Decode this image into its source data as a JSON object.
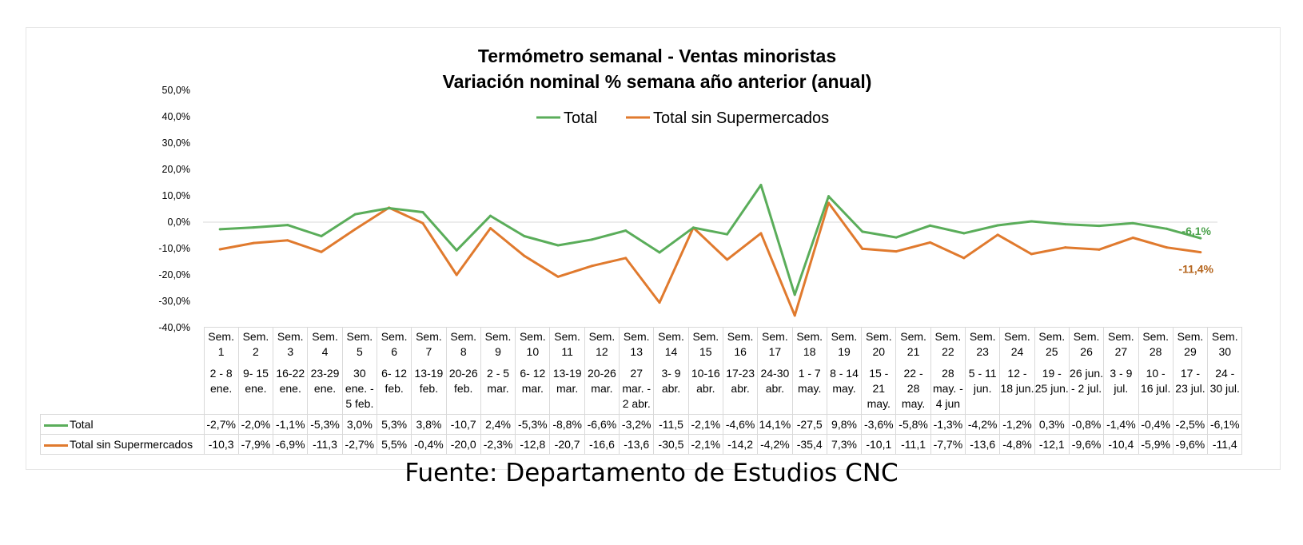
{
  "chart_data": {
    "type": "line",
    "title": "Termómetro semanal - Ventas minoristas",
    "subtitle": "Variación nominal % semana año anterior (anual)",
    "ylim": [
      -40,
      50
    ],
    "yticks": [
      "-40,0%",
      "-30,0%",
      "-20,0%",
      "-10,0%",
      "0,0%",
      "10,0%",
      "20,0%",
      "30,0%",
      "40,0%",
      "50,0%"
    ],
    "legend_position": "top-center",
    "categories": [
      {
        "week": "Sem. 1",
        "dates": "2 - 8 ene."
      },
      {
        "week": "Sem. 2",
        "dates": "9- 15 ene."
      },
      {
        "week": "Sem. 3",
        "dates": "16-22 ene."
      },
      {
        "week": "Sem. 4",
        "dates": "23-29 ene."
      },
      {
        "week": "Sem. 5",
        "dates": "30 ene. - 5 feb."
      },
      {
        "week": "Sem. 6",
        "dates": "6- 12 feb."
      },
      {
        "week": "Sem. 7",
        "dates": "13-19 feb."
      },
      {
        "week": "Sem. 8",
        "dates": "20-26 feb."
      },
      {
        "week": "Sem. 9",
        "dates": "2 - 5 mar."
      },
      {
        "week": "Sem. 10",
        "dates": "6- 12 mar."
      },
      {
        "week": "Sem. 11",
        "dates": "13-19 mar."
      },
      {
        "week": "Sem. 12",
        "dates": "20-26 mar."
      },
      {
        "week": "Sem. 13",
        "dates": "27 mar. - 2 abr."
      },
      {
        "week": "Sem. 14",
        "dates": "3- 9 abr."
      },
      {
        "week": "Sem. 15",
        "dates": "10-16 abr."
      },
      {
        "week": "Sem. 16",
        "dates": "17-23 abr."
      },
      {
        "week": "Sem. 17",
        "dates": "24-30 abr."
      },
      {
        "week": "Sem. 18",
        "dates": "1 - 7 may."
      },
      {
        "week": "Sem. 19",
        "dates": "8 - 14 may."
      },
      {
        "week": "Sem. 20",
        "dates": "15 - 21 may."
      },
      {
        "week": "Sem. 21",
        "dates": "22 - 28 may."
      },
      {
        "week": "Sem. 22",
        "dates": "28 may. - 4 jun"
      },
      {
        "week": "Sem. 23",
        "dates": "5 - 11 jun."
      },
      {
        "week": "Sem. 24",
        "dates": "12 - 18 jun."
      },
      {
        "week": "Sem. 25",
        "dates": "19 - 25 jun."
      },
      {
        "week": "Sem. 26",
        "dates": "26 jun. - 2 jul."
      },
      {
        "week": "Sem. 27",
        "dates": "3 - 9 jul."
      },
      {
        "week": "Sem. 28",
        "dates": "10 - 16 jul."
      },
      {
        "week": "Sem. 29",
        "dates": "17 - 23 jul."
      },
      {
        "week": "Sem. 30",
        "dates": "24 - 30 jul."
      }
    ],
    "series": [
      {
        "name": "Total",
        "color": "#5aad5a",
        "values": [
          -2.7,
          -2.0,
          -1.1,
          -5.3,
          3.0,
          5.3,
          3.8,
          -10.7,
          2.4,
          -5.3,
          -8.8,
          -6.6,
          -3.2,
          -11.5,
          -2.1,
          -4.6,
          14.1,
          -27.5,
          9.8,
          -3.6,
          -5.8,
          -1.3,
          -4.2,
          -1.2,
          0.3,
          -0.8,
          -1.4,
          -0.4,
          -2.5,
          -6.1
        ],
        "labels": [
          "-2,7%",
          "-2,0%",
          "-1,1%",
          "-5,3%",
          "3,0%",
          "5,3%",
          "3,8%",
          "-10,7",
          "2,4%",
          "-5,3%",
          "-8,8%",
          "-6,6%",
          "-3,2%",
          "-11,5",
          "-2,1%",
          "-4,6%",
          "14,1%",
          "-27,5",
          "9,8%",
          "-3,6%",
          "-5,8%",
          "-1,3%",
          "-4,2%",
          "-1,2%",
          "0,3%",
          "-0,8%",
          "-1,4%",
          "-0,4%",
          "-2,5%",
          "-6,1%"
        ],
        "end_label": "-6,1%",
        "end_label_color": "#4ca24c"
      },
      {
        "name": "Total sin Supermercados",
        "color": "#e07a2e",
        "values": [
          -10.3,
          -7.9,
          -6.9,
          -11.3,
          -2.7,
          5.5,
          -0.4,
          -20.0,
          -2.3,
          -12.8,
          -20.7,
          -16.6,
          -13.6,
          -30.5,
          -2.1,
          -14.2,
          -4.2,
          -35.4,
          7.3,
          -10.1,
          -11.1,
          -7.7,
          -13.6,
          -4.8,
          -12.1,
          -9.6,
          -10.4,
          -5.9,
          -9.6,
          -11.4
        ],
        "labels": [
          "-10,3",
          "-7,9%",
          "-6,9%",
          "-11,3",
          "-2,7%",
          "5,5%",
          "-0,4%",
          "-20,0",
          "-2,3%",
          "-12,8",
          "-20,7",
          "-16,6",
          "-13,6",
          "-30,5",
          "-2,1%",
          "-14,2",
          "-4,2%",
          "-35,4",
          "7,3%",
          "-10,1",
          "-11,1",
          "-7,7%",
          "-13,6",
          "-4,8%",
          "-12,1",
          "-9,6%",
          "-10,4",
          "-5,9%",
          "-9,6%",
          "-11,4"
        ],
        "end_label": "-11,4%",
        "end_label_color": "#b5651d"
      }
    ]
  },
  "source": "Fuente: Departamento de Estudios CNC"
}
